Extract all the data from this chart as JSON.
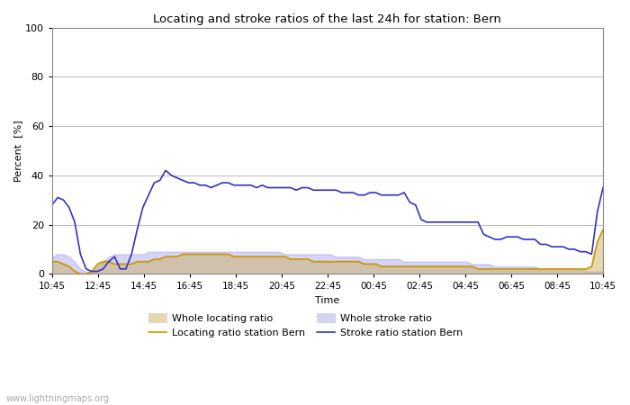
{
  "title": "Locating and stroke ratios of the last 24h for station: Bern",
  "xlabel": "Time",
  "ylabel": "Percent  [%]",
  "watermark": "www.lightningmaps.org",
  "x_ticks": [
    "10:45",
    "12:45",
    "14:45",
    "16:45",
    "18:45",
    "20:45",
    "22:45",
    "00:45",
    "02:45",
    "04:45",
    "06:45",
    "08:45",
    "10:45"
  ],
  "ylim": [
    0,
    100
  ],
  "yticks": [
    0,
    20,
    40,
    60,
    80,
    100
  ],
  "background_color": "#ffffff",
  "plot_bg_color": "#ffffff",
  "grid_color": "#bbbbbb",
  "whole_locating_ratio": [
    5,
    5,
    4,
    3,
    1,
    0,
    0,
    1,
    4,
    5,
    5,
    4,
    4,
    4,
    4,
    5,
    5,
    5,
    6,
    6,
    7,
    7,
    7,
    8,
    8,
    8,
    8,
    8,
    8,
    8,
    8,
    8,
    7,
    7,
    7,
    7,
    7,
    7,
    7,
    7,
    7,
    7,
    6,
    6,
    6,
    6,
    5,
    5,
    5,
    5,
    5,
    5,
    5,
    5,
    5,
    4,
    4,
    4,
    3,
    3,
    3,
    3,
    3,
    3,
    3,
    3,
    3,
    3,
    3,
    3,
    3,
    3,
    3,
    3,
    3,
    2,
    2,
    2,
    2,
    2,
    2,
    2,
    2,
    2,
    2,
    2,
    2,
    2,
    2,
    2,
    2,
    2,
    2,
    2,
    2,
    3,
    13,
    18
  ],
  "whole_stroke_ratio": [
    7,
    8,
    8,
    7,
    5,
    2,
    1,
    1,
    3,
    5,
    7,
    8,
    8,
    8,
    8,
    8,
    8,
    9,
    9,
    9,
    9,
    9,
    9,
    9,
    9,
    9,
    9,
    9,
    9,
    9,
    9,
    9,
    9,
    9,
    9,
    9,
    9,
    9,
    9,
    9,
    9,
    8,
    8,
    8,
    8,
    8,
    8,
    8,
    8,
    8,
    7,
    7,
    7,
    7,
    7,
    6,
    6,
    6,
    6,
    6,
    6,
    6,
    5,
    5,
    5,
    5,
    5,
    5,
    5,
    5,
    5,
    5,
    5,
    5,
    4,
    4,
    4,
    4,
    3,
    3,
    3,
    3,
    3,
    3,
    3,
    3,
    2,
    2,
    2,
    2,
    2,
    2,
    2,
    2,
    1,
    1,
    1,
    1
  ],
  "locating_ratio_bern": [
    5,
    5,
    4,
    3,
    1,
    0,
    0,
    1,
    4,
    5,
    5,
    4,
    4,
    4,
    4,
    5,
    5,
    5,
    6,
    6,
    7,
    7,
    7,
    8,
    8,
    8,
    8,
    8,
    8,
    8,
    8,
    8,
    7,
    7,
    7,
    7,
    7,
    7,
    7,
    7,
    7,
    7,
    6,
    6,
    6,
    6,
    5,
    5,
    5,
    5,
    5,
    5,
    5,
    5,
    5,
    4,
    4,
    4,
    3,
    3,
    3,
    3,
    3,
    3,
    3,
    3,
    3,
    3,
    3,
    3,
    3,
    3,
    3,
    3,
    3,
    2,
    2,
    2,
    2,
    2,
    2,
    2,
    2,
    2,
    2,
    2,
    2,
    2,
    2,
    2,
    2,
    2,
    2,
    2,
    2,
    3,
    13,
    18
  ],
  "stroke_ratio_bern": [
    28,
    31,
    30,
    27,
    21,
    8,
    2,
    1,
    1,
    2,
    5,
    7,
    2,
    2,
    8,
    18,
    27,
    32,
    37,
    38,
    42,
    40,
    39,
    38,
    37,
    37,
    36,
    36,
    35,
    36,
    37,
    37,
    36,
    36,
    36,
    36,
    35,
    36,
    35,
    35,
    35,
    35,
    35,
    34,
    35,
    35,
    34,
    34,
    34,
    34,
    34,
    33,
    33,
    33,
    32,
    32,
    33,
    33,
    32,
    32,
    32,
    32,
    33,
    29,
    28,
    22,
    21,
    21,
    21,
    21,
    21,
    21,
    21,
    21,
    21,
    21,
    16,
    15,
    14,
    14,
    15,
    15,
    15,
    14,
    14,
    14,
    12,
    12,
    11,
    11,
    11,
    10,
    10,
    9,
    9,
    8,
    25,
    35
  ],
  "legend": {
    "whole_locating": {
      "label": "Whole locating ratio",
      "color": "#ccaa55",
      "alpha": 0.45
    },
    "whole_stroke": {
      "label": "Whole stroke ratio",
      "color": "#aaaaee",
      "alpha": 0.5
    },
    "locating_bern": {
      "label": "Locating ratio station Bern",
      "color": "#cc9900",
      "linewidth": 1.2
    },
    "stroke_bern": {
      "label": "Stroke ratio station Bern",
      "color": "#3333bb",
      "linewidth": 1.2
    }
  }
}
